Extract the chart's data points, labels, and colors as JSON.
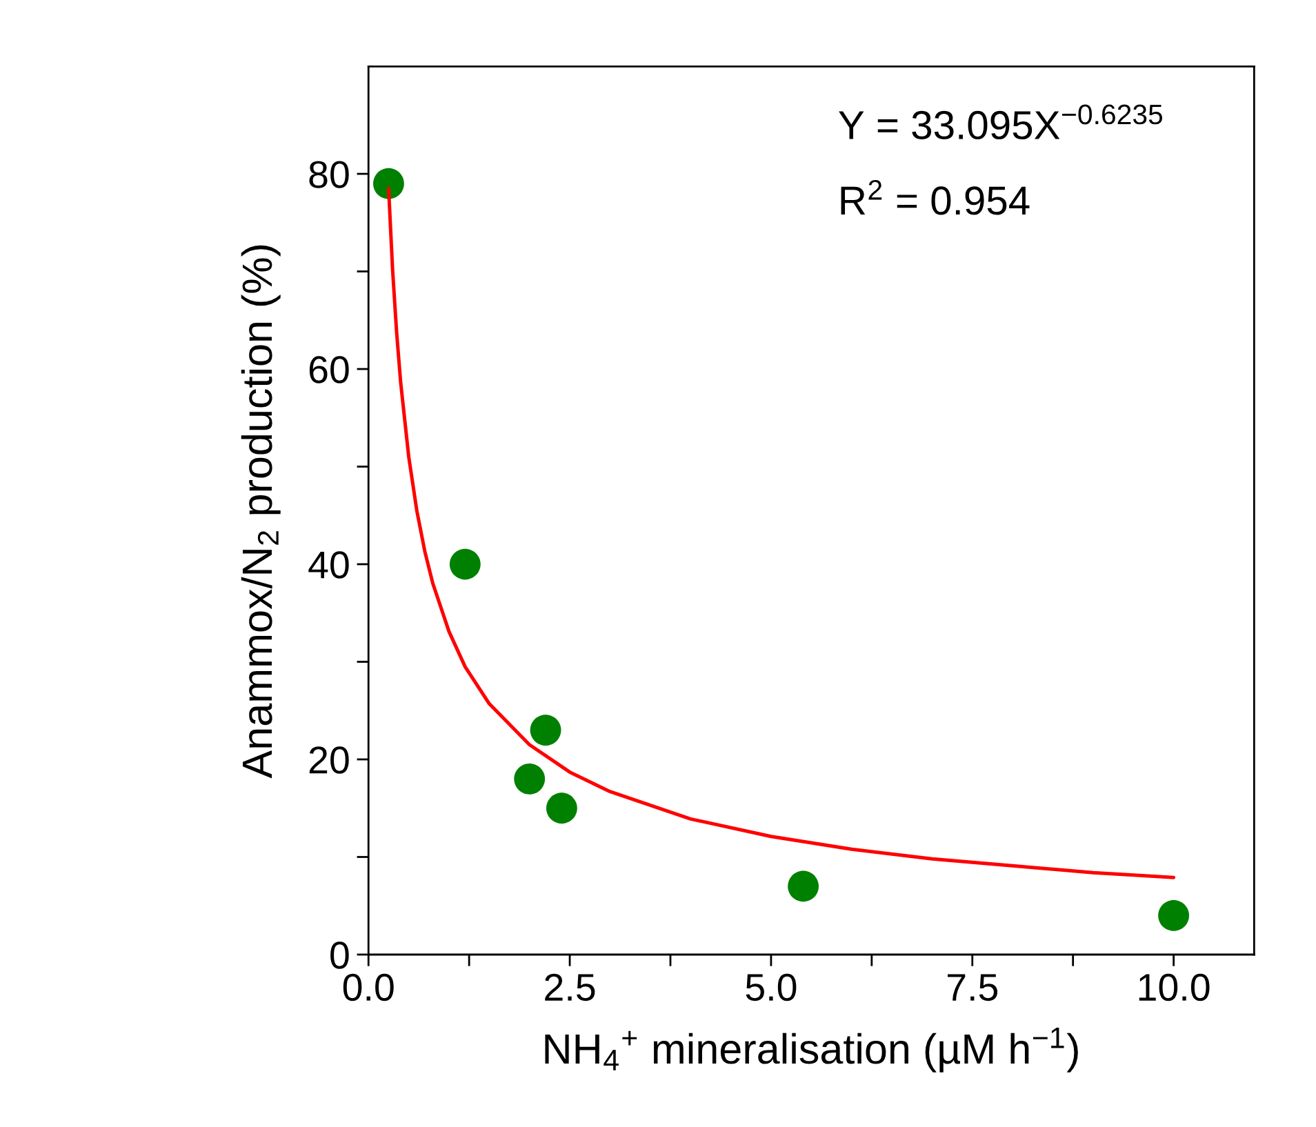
{
  "chart_data": {
    "type": "scatter",
    "xlabel": "NH$_{4}$$^{+}$ mineralisation (µM h$^{−1}$)",
    "ylabel": "Anammox/N$_{2}$ production (%)",
    "annotations": [
      "Y = 33.095X$^{−0.6235}$",
      "R$^{2}$ = 0.954"
    ],
    "xlim": [
      0,
      11
    ],
    "ylim": [
      0,
      91
    ],
    "xticks": [
      {
        "value": 0,
        "label": "0.0"
      },
      {
        "value": 1.25,
        "label": null
      },
      {
        "value": 2.5,
        "label": "2.5"
      },
      {
        "value": 3.75,
        "label": null
      },
      {
        "value": 5,
        "label": "5.0"
      },
      {
        "value": 6.25,
        "label": null
      },
      {
        "value": 7.5,
        "label": "7.5"
      },
      {
        "value": 8.75,
        "label": null
      },
      {
        "value": 10,
        "label": "10.0"
      }
    ],
    "yticks": [
      0,
      {
        "value": 10,
        "label": null
      },
      20,
      {
        "value": 30,
        "label": null
      },
      40,
      {
        "value": 50,
        "label": null
      },
      60,
      {
        "value": 70,
        "label": null
      },
      80
    ],
    "grid": false,
    "legend": false,
    "series": [
      {
        "color": "#008000",
        "marker": "circle",
        "x": [
          0.25,
          1.2,
          2.0,
          2.2,
          2.4,
          5.4,
          10.0
        ],
        "values": [
          79,
          40,
          18,
          23,
          15,
          7,
          4
        ]
      },
      {
        "type": "line",
        "color": "#ff0000",
        "marker": "none",
        "line_style": "solid",
        "x": [
          0.25,
          0.3,
          0.35,
          0.4,
          0.5,
          0.6,
          0.7,
          0.8,
          1,
          1.2,
          1.5,
          2,
          2.5,
          3,
          4,
          5,
          6,
          7,
          8,
          9,
          10
        ],
        "values": [
          78.5,
          70.1,
          63.7,
          58.6,
          51.0,
          45.5,
          41.3,
          38.0,
          33.1,
          29.5,
          25.7,
          21.5,
          18.7,
          16.7,
          13.9,
          12.1,
          10.8,
          9.8,
          9.1,
          8.4,
          7.9
        ]
      }
    ]
  }
}
